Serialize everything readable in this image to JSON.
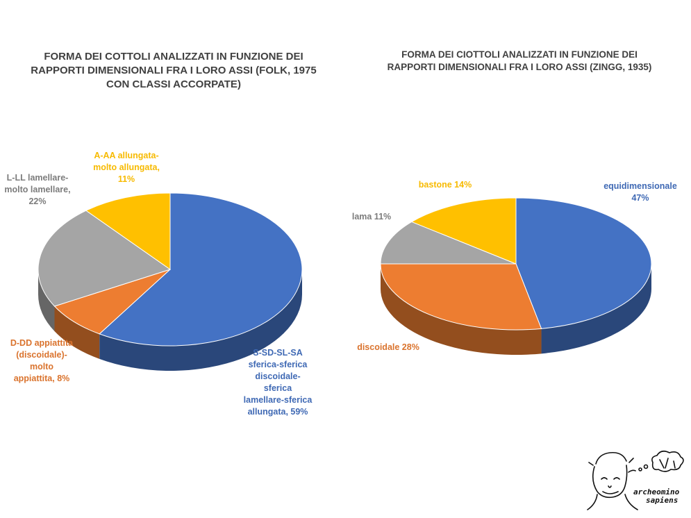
{
  "colors": {
    "blue": "#4472C4",
    "orange": "#ED7D31",
    "gray": "#A5A5A5",
    "gold": "#FFC000"
  },
  "chart_data": [
    {
      "type": "pie",
      "title": "FORMA DEI COTTOLI ANALIZZATI IN FUNZIONE DEI RAPPORTI DIMENSIONALI FRA I LORO ASSI (FOLK, 1975 CON CLASSI ACCORPATE)",
      "style": "3d",
      "slices": [
        {
          "label_lines": [
            "S-SD-SL-SA",
            "sferica-sferica",
            "discoidale-",
            "sferica",
            "lamellare-sferica",
            "allungata, 59%"
          ],
          "value": 59,
          "color": "#4472C4"
        },
        {
          "label_lines": [
            "D-DD appiattita",
            "(discoidale)-",
            "molto",
            "appiattita, 8%"
          ],
          "value": 8,
          "color": "#ED7D31"
        },
        {
          "label_lines": [
            "L-LL lamellare-",
            "molto lamellare,",
            "22%"
          ],
          "value": 22,
          "color": "#A5A5A5"
        },
        {
          "label_lines": [
            "A-AA allungata-",
            "molto allungata,",
            "11%"
          ],
          "value": 11,
          "color": "#FFC000"
        }
      ]
    },
    {
      "type": "pie",
      "title": "FORMA DEI CIOTTOLI ANALIZZATI IN FUNZIONE DEI RAPPORTI DIMENSIONALI FRA I LORO ASSI (ZINGG, 1935)",
      "style": "3d",
      "slices": [
        {
          "label_lines": [
            "equidimensionale",
            "47%"
          ],
          "value": 47,
          "color": "#4472C4"
        },
        {
          "label_lines": [
            "discoidale 28%"
          ],
          "value": 28,
          "color": "#ED7D31"
        },
        {
          "label_lines": [
            "lama 11%"
          ],
          "value": 11,
          "color": "#A5A5A5"
        },
        {
          "label_lines": [
            "bastone 14%"
          ],
          "value": 14,
          "color": "#FFC000"
        }
      ]
    }
  ],
  "logo": {
    "line1": "archeomino",
    "line2": "sapiens"
  }
}
